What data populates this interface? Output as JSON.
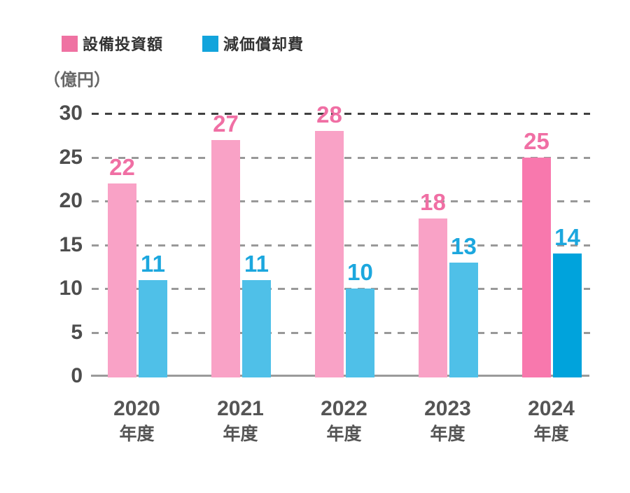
{
  "legend": {
    "items": [
      {
        "label": "設備投資額",
        "color": "#ef72a2"
      },
      {
        "label": "減価償却費",
        "color": "#12a4dc"
      }
    ]
  },
  "unit_label": "（億円）",
  "chart_data": {
    "type": "bar",
    "title": "",
    "categories": [
      "2020",
      "2021",
      "2022",
      "2023",
      "2024"
    ],
    "category_suffix": "年度",
    "series": [
      {
        "name": "設備投資額",
        "values": [
          22,
          27,
          28,
          18,
          25
        ],
        "bar_color": "#f9a2c6",
        "bar_color_highlight": "#f878ad",
        "label_color": "#f06fa4"
      },
      {
        "name": "減価償却費",
        "values": [
          11,
          11,
          10,
          13,
          14
        ],
        "bar_color": "#4fc0e8",
        "bar_color_highlight": "#00a3dc",
        "label_color": "#1ca7de"
      }
    ],
    "highlight_category_index": 4,
    "ylabel": "（億円）",
    "yticks": [
      0,
      5,
      10,
      15,
      20,
      25,
      30
    ],
    "ylim": [
      0,
      30
    ],
    "grid": "dashed-horizontal",
    "grid_color": "#999999",
    "grid_top_color": "#404040",
    "axis_line_color": "#9a9a9a",
    "legend_position": "top-left",
    "value_labels": "above-bars"
  }
}
